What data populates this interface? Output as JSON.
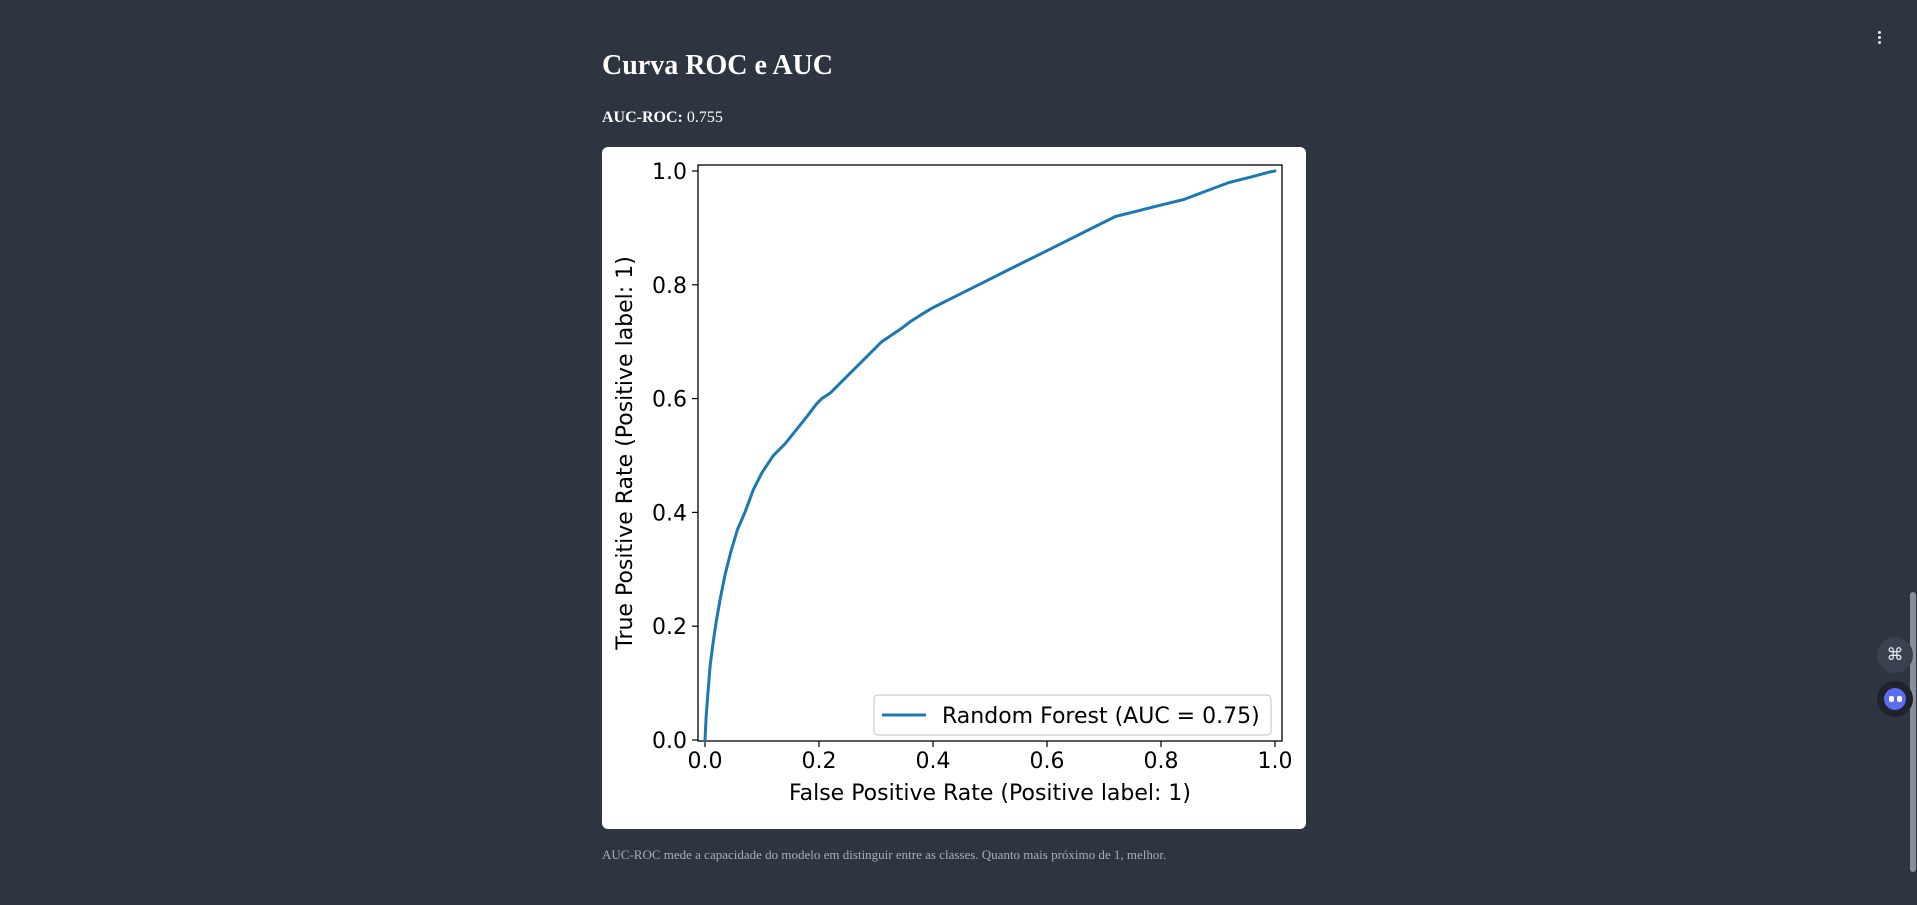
{
  "page": {
    "title": "Curva ROC e AUC",
    "metric_label": "AUC-ROC:",
    "metric_value": "0.755",
    "caption": "AUC-ROC mede a capacidade do modelo em distinguir entre as classes. Quanto mais próximo de 1, melhor."
  },
  "toolbar": {
    "menu_icon": "more-vertical-icon"
  },
  "floating_buttons": [
    {
      "name": "command-icon",
      "glyph": "⌘"
    },
    {
      "name": "assistant-bot-icon"
    }
  ],
  "colors": {
    "background": "#2e3440",
    "card": "#ffffff",
    "curve": "#1a7ab0",
    "text": "#ffffff",
    "caption": "#a7adb8"
  },
  "chart_data": {
    "type": "line",
    "title": "",
    "xlabel": "False Positive Rate (Positive label: 1)",
    "ylabel": "True Positive Rate (Positive label: 1)",
    "xlim": [
      0.0,
      1.0
    ],
    "ylim": [
      0.0,
      1.0
    ],
    "x_ticks": [
      "0.0",
      "0.2",
      "0.4",
      "0.6",
      "0.8",
      "1.0"
    ],
    "y_ticks": [
      "0.0",
      "0.2",
      "0.4",
      "0.6",
      "0.8",
      "1.0"
    ],
    "grid": false,
    "legend_position": "lower-right",
    "series": [
      {
        "name": "Random Forest (AUC = 0.75)",
        "color": "#1a7ab0",
        "x": [
          0.0,
          0.002,
          0.005,
          0.009,
          0.014,
          0.02,
          0.027,
          0.035,
          0.045,
          0.057,
          0.07,
          0.085,
          0.1,
          0.12,
          0.14,
          0.16,
          0.18,
          0.195,
          0.205,
          0.22,
          0.25,
          0.28,
          0.31,
          0.34,
          0.36,
          0.38,
          0.4,
          0.44,
          0.48,
          0.52,
          0.56,
          0.6,
          0.64,
          0.68,
          0.72,
          0.76,
          0.8,
          0.84,
          0.88,
          0.92,
          0.96,
          0.99,
          1.0
        ],
        "y": [
          0.0,
          0.04,
          0.08,
          0.13,
          0.17,
          0.21,
          0.25,
          0.29,
          0.33,
          0.37,
          0.4,
          0.44,
          0.47,
          0.5,
          0.52,
          0.545,
          0.57,
          0.59,
          0.6,
          0.61,
          0.64,
          0.67,
          0.7,
          0.72,
          0.735,
          0.748,
          0.76,
          0.78,
          0.8,
          0.82,
          0.84,
          0.86,
          0.88,
          0.9,
          0.92,
          0.93,
          0.94,
          0.95,
          0.965,
          0.98,
          0.99,
          0.998,
          1.0
        ]
      }
    ]
  }
}
